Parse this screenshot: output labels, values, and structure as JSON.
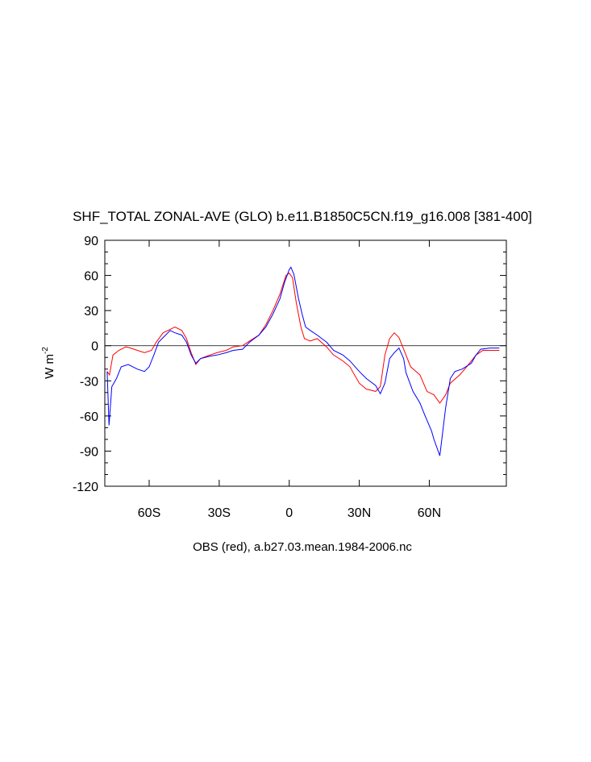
{
  "chart_data": {
    "type": "line",
    "title": "SHF_TOTAL ZONAL-AVE (GLO) b.e11.B1850C5CN.f19_g16.008 [381-400]",
    "x_label": "OBS (red), a.b27.03.mean.1984-2006.nc",
    "y_label": "W m",
    "y_label_superscript": "-2",
    "xlim": [
      -79,
      93
    ],
    "ylim": [
      -120,
      90
    ],
    "xticks": [
      {
        "value": -60,
        "label": "60S"
      },
      {
        "value": -30,
        "label": "30S"
      },
      0,
      {
        "value": 30,
        "label": "30N"
      },
      {
        "value": 60,
        "label": "60N"
      }
    ],
    "yticks": [
      -120,
      -90,
      -60,
      -30,
      0,
      30,
      60,
      90
    ],
    "yminorticks": [
      -110,
      -100,
      -80,
      -70,
      -50,
      -40,
      -20,
      -10,
      10,
      20,
      40,
      50,
      70,
      80
    ],
    "reference_line": 0,
    "series": [
      {
        "color": "#ff0000",
        "x": [
          -78,
          -77,
          -75.5,
          -73,
          -70,
          -68,
          -65,
          -62,
          -59,
          -57,
          -54,
          -51,
          -49,
          -46,
          -44,
          -42,
          -40,
          -38,
          -34,
          -31,
          -27,
          -24,
          -20,
          -17,
          -13,
          -10,
          -7,
          -4,
          -1.4,
          0,
          1.4,
          3,
          5,
          6.5,
          9,
          12,
          16,
          19,
          23,
          26,
          30,
          33,
          37,
          39,
          41,
          43,
          45,
          47,
          50,
          52,
          56,
          59,
          62,
          64.5,
          67,
          69,
          73,
          76,
          80,
          83,
          90
        ],
        "values": [
          -22,
          -25,
          -8,
          -4,
          -1,
          -2,
          -4,
          -6,
          -4,
          3,
          11,
          14,
          16,
          13,
          6,
          -6,
          -16,
          -11,
          -8,
          -6,
          -4,
          -1,
          0,
          4,
          9,
          18,
          30,
          44,
          60,
          62,
          58,
          37,
          16,
          6,
          4,
          6,
          -1,
          -8,
          -13,
          -18,
          -32,
          -37,
          -39,
          -35,
          -8,
          6,
          11,
          7,
          -8,
          -18,
          -25,
          -39,
          -42,
          -49,
          -42,
          -32,
          -25,
          -18,
          -8,
          -4,
          -4
        ]
      },
      {
        "color": "#0000ff",
        "x": [
          -78,
          -77.2,
          -76,
          -74,
          -72,
          -69,
          -65,
          -62,
          -60,
          -58,
          -56,
          -53,
          -51,
          -49,
          -46,
          -44,
          -42,
          -40,
          -38,
          -34,
          -31,
          -27,
          -24,
          -20,
          -17,
          -13,
          -10,
          -7,
          -4,
          -2,
          0,
          0.7,
          2,
          4,
          5.5,
          7,
          9,
          12,
          16,
          19,
          23,
          26,
          30,
          33,
          37,
          39,
          41,
          43,
          45,
          47,
          49,
          50,
          53,
          56,
          58,
          61,
          62,
          64.5,
          67,
          69,
          71,
          74,
          78,
          80,
          82,
          86,
          90
        ],
        "values": [
          -22,
          -68,
          -35,
          -28,
          -18,
          -16,
          -20,
          -22,
          -18,
          -8,
          3,
          9,
          13,
          11,
          9,
          3,
          -8,
          -15,
          -11,
          -9,
          -8,
          -6,
          -4,
          -3,
          3,
          9,
          16,
          27,
          40,
          54,
          65,
          67,
          61,
          40,
          27,
          16,
          13,
          9,
          3,
          -4,
          -8,
          -13,
          -22,
          -28,
          -34,
          -41,
          -32,
          -11,
          -6,
          -2,
          -11,
          -23,
          -39,
          -49,
          -59,
          -73,
          -80,
          -94,
          -53,
          -28,
          -22,
          -20,
          -15,
          -8,
          -3,
          -2,
          -2
        ]
      }
    ]
  }
}
